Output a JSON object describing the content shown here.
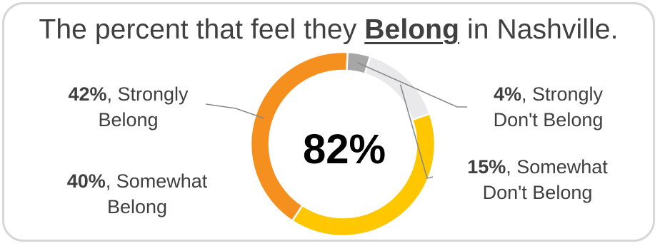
{
  "title": {
    "prefix": "The percent that feel they ",
    "emphasis": "Belong",
    "suffix": " in Nashville."
  },
  "center_label": "82%",
  "chart_data": {
    "type": "pie",
    "variant": "donut",
    "title": "The percent that feel they Belong in Nashville.",
    "start_angle_deg": 3,
    "direction": "counterclockwise",
    "slices": [
      {
        "pct": "42%",
        "value": 42,
        "line1": ", Strongly",
        "line2": "Belong",
        "color": "#F5901E"
      },
      {
        "pct": "40%",
        "value": 40,
        "line1": ", Somewhat",
        "line2": "Belong",
        "color": "#FFC700"
      },
      {
        "pct": "15%",
        "value": 15,
        "line1": ", Somewhat",
        "line2": "Don't Belong",
        "color": "#E9E9EB"
      },
      {
        "pct": "4%",
        "value": 4,
        "line1": ", Strongly",
        "line2": "Don't Belong",
        "color": "#A6A6A6"
      }
    ],
    "center_value": "82%"
  }
}
